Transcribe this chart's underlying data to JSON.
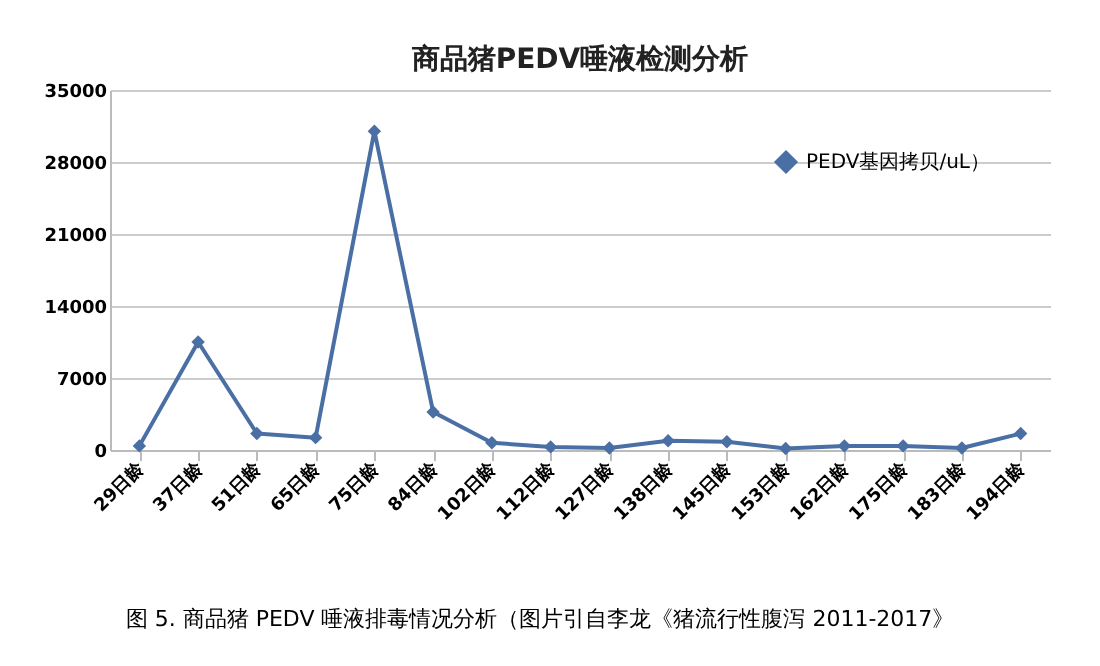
{
  "chart_data": {
    "type": "line",
    "title": "商品猪PEDV唾液检测分析",
    "categories": [
      "29日龄",
      "37日龄",
      "51日龄",
      "65日龄",
      "75日龄",
      "84日龄",
      "102日龄",
      "112日龄",
      "127日龄",
      "138日龄",
      "145日龄",
      "153日龄",
      "162日龄",
      "175日龄",
      "183日龄",
      "194日龄"
    ],
    "series": [
      {
        "name": "PEDV基因拷贝/uL）",
        "color": "#4a6fa5",
        "values": [
          400,
          10500,
          1600,
          1200,
          31000,
          3700,
          700,
          300,
          200,
          900,
          800,
          150,
          400,
          400,
          200,
          1600
        ]
      }
    ],
    "ylim": [
      0,
      35000
    ],
    "yticks": [
      0,
      7000,
      14000,
      21000,
      28000,
      35000
    ],
    "grid": "y",
    "legend": "top right",
    "marker": "diamond",
    "line_style": "solid",
    "annotations": [
      "图 5. 商品猪 PEDV 唾液排毒情况分析（图片引自李龙《猪流行性腹泻 2011-2017》"
    ]
  }
}
